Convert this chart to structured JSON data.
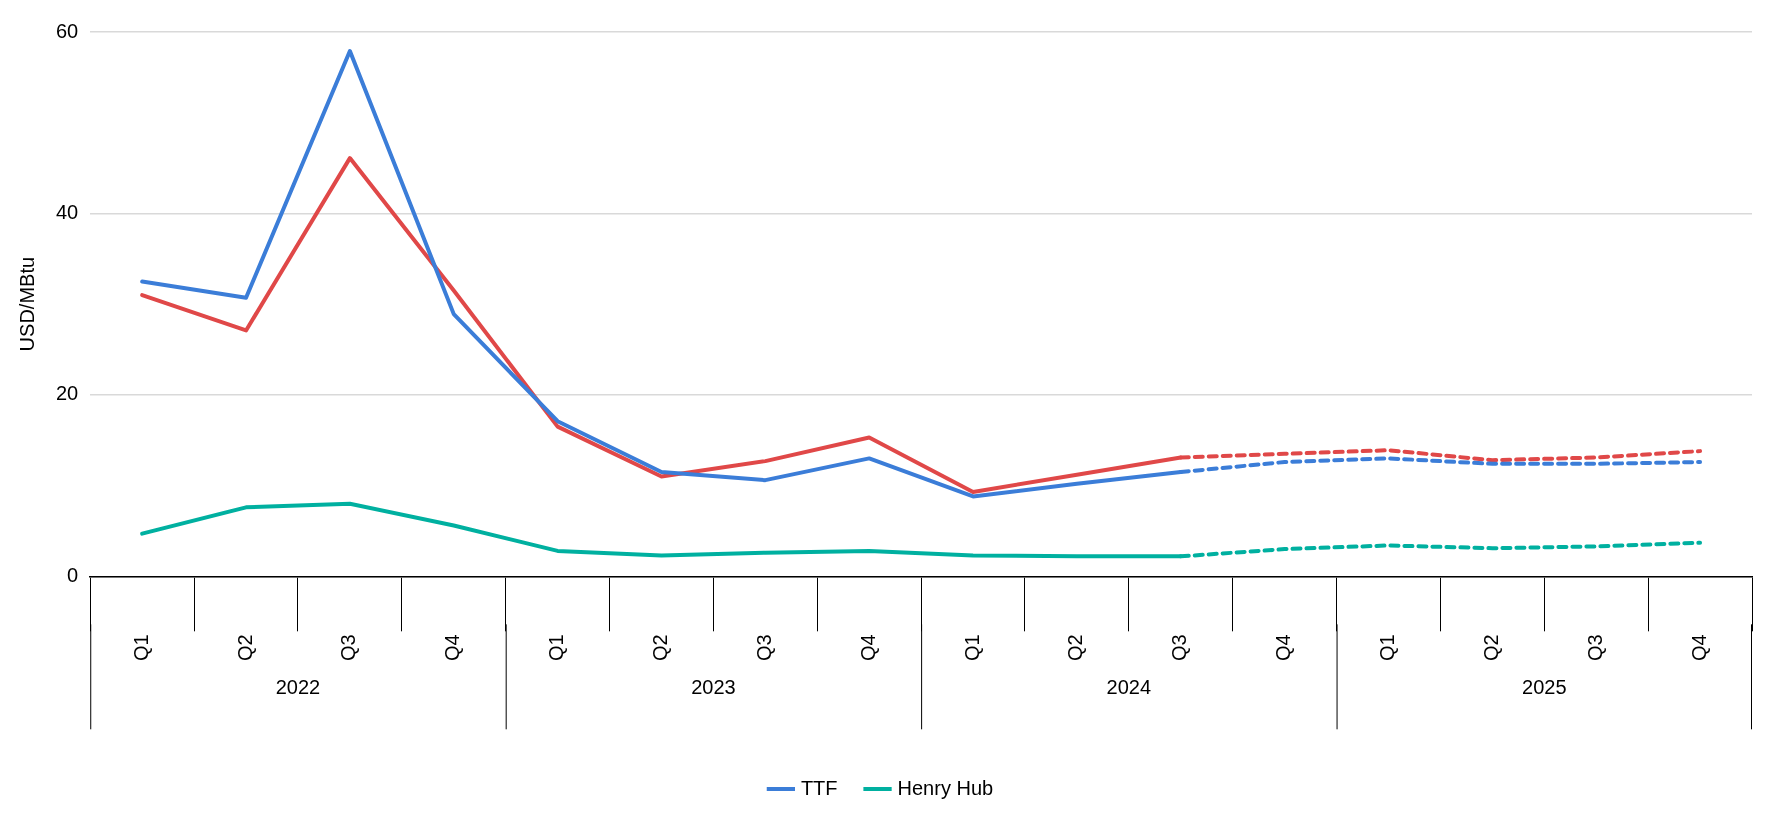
{
  "chart_data": {
    "type": "line",
    "ylabel": "USD/MBtu",
    "categories": [
      "Q1",
      "Q2",
      "Q3",
      "Q4",
      "Q1",
      "Q2",
      "Q3",
      "Q4",
      "Q1",
      "Q2",
      "Q3",
      "Q4",
      "Q1",
      "Q2",
      "Q3",
      "Q4"
    ],
    "annotations": [
      "2022",
      "2023",
      "2024",
      "2025"
    ],
    "ylim": [
      0,
      60
    ],
    "yticks": [
      0,
      20,
      40,
      60
    ],
    "grid": "y",
    "legend": "bottom",
    "marker": "none",
    "series": [
      {
        "name": "TTF",
        "color": "#3b7dd8",
        "line_style": "solid",
        "values": [
          32.5,
          30.7,
          57.9,
          28.9,
          17.1,
          11.5,
          10.6,
          13.0,
          8.8,
          10.2,
          11.5,
          null,
          null,
          null,
          null,
          null
        ]
      },
      {
        "name": "Henry Hub",
        "color": "#00b0a0",
        "line_style": "solid",
        "values": [
          4.7,
          7.6,
          8.0,
          5.6,
          2.8,
          2.3,
          2.6,
          2.8,
          2.3,
          2.2,
          2.2,
          null,
          null,
          null,
          null,
          null
        ]
      },
      {
        "color": "#e04848",
        "line_style": "solid",
        "values": [
          31.0,
          27.1,
          46.1,
          31.5,
          16.5,
          11.0,
          12.7,
          15.3,
          9.3,
          11.2,
          13.1,
          null,
          null,
          null,
          null,
          null
        ]
      },
      {
        "color": "#3b7dd8",
        "line_style": "dashed",
        "values": [
          null,
          null,
          null,
          null,
          null,
          null,
          null,
          null,
          null,
          null,
          11.5,
          12.6,
          13.0,
          12.4,
          12.4,
          12.6
        ]
      },
      {
        "color": "#00b0a0",
        "line_style": "dashed",
        "values": [
          null,
          null,
          null,
          null,
          null,
          null,
          null,
          null,
          null,
          null,
          2.2,
          3.0,
          3.4,
          3.1,
          3.3,
          3.7
        ]
      },
      {
        "color": "#e04848",
        "line_style": "dashed",
        "values": [
          null,
          null,
          null,
          null,
          null,
          null,
          null,
          null,
          null,
          null,
          13.1,
          13.5,
          13.9,
          12.8,
          13.1,
          13.8
        ]
      }
    ]
  }
}
